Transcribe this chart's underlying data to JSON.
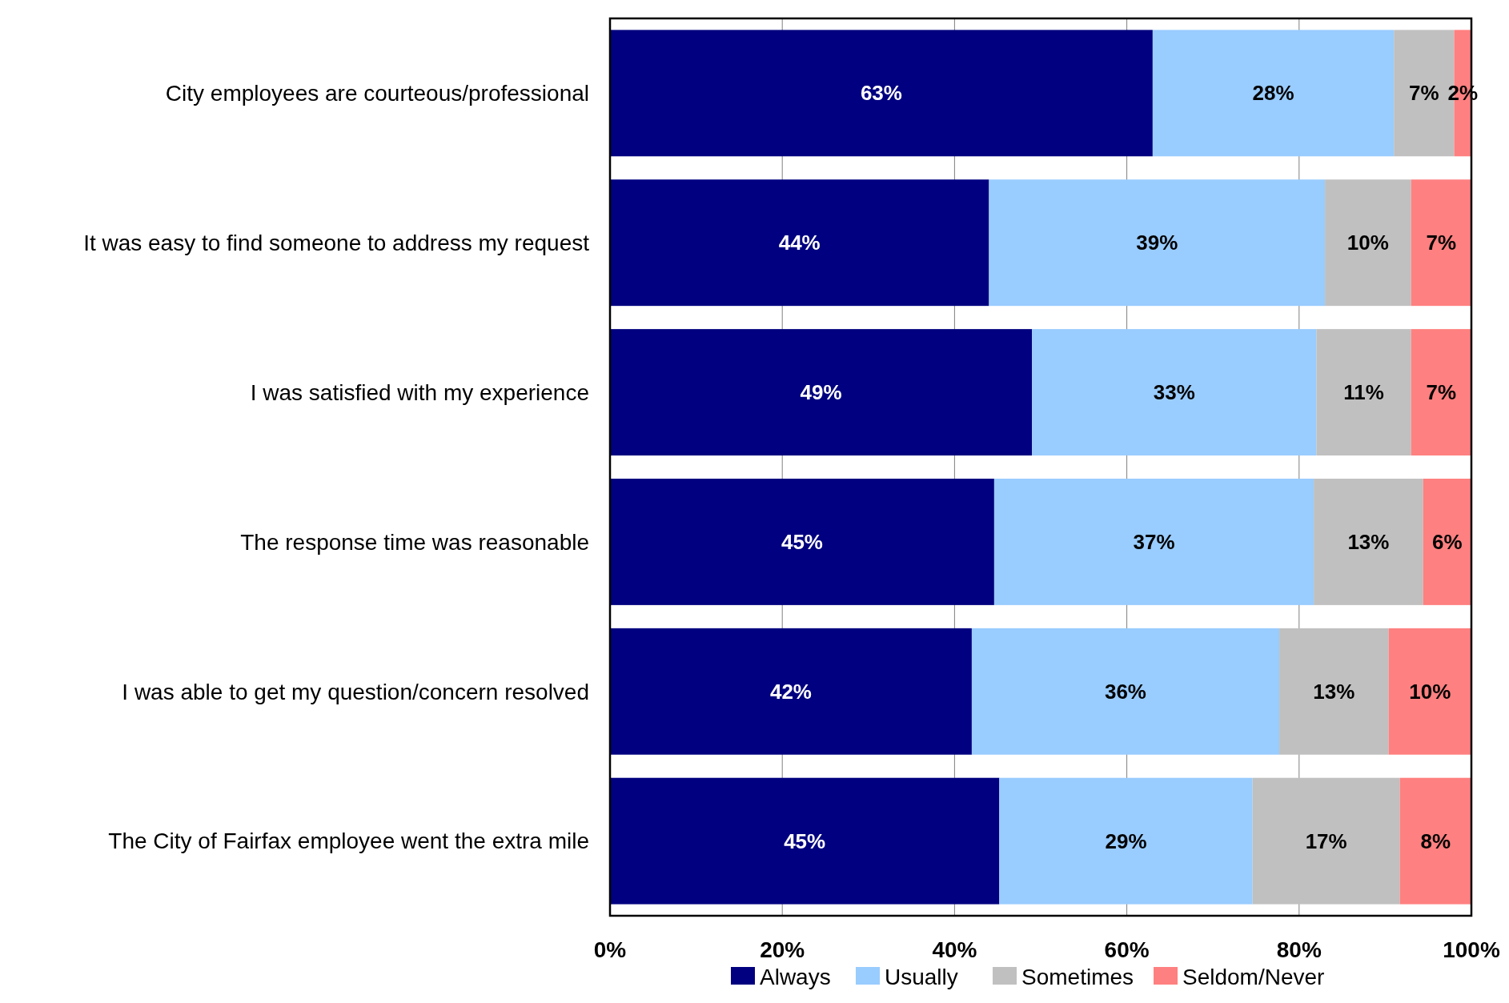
{
  "chart_data": {
    "type": "bar",
    "orientation": "horizontal",
    "stacked": true,
    "categories": [
      "City employees are courteous/professional",
      "It was easy to find someone to address my request",
      "I was satisfied with my experience",
      "The response time was reasonable",
      "I was able to get my question/concern resolved",
      "The City of Fairfax employee went the extra mile"
    ],
    "series": [
      {
        "name": "Always",
        "color": "#000080",
        "values": [
          63,
          44,
          49,
          44.6,
          42,
          45.2
        ],
        "value_labels": [
          "63%",
          "44%",
          "49%",
          "45%",
          "42%",
          "45%"
        ]
      },
      {
        "name": "Usually",
        "color": "#99ccff",
        "values": [
          28,
          39,
          33,
          37.1,
          35.7,
          29.4
        ],
        "value_labels": [
          "28%",
          "39%",
          "33%",
          "37%",
          "36%",
          "29%"
        ]
      },
      {
        "name": "Sometimes",
        "color": "#c0c0c0",
        "values": [
          7,
          10,
          11,
          12.7,
          12.7,
          17.1
        ],
        "value_labels": [
          "7%",
          "10%",
          "11%",
          "13%",
          "13%",
          "17%"
        ]
      },
      {
        "name": "Seldom/Never",
        "color": "#ff8080",
        "values": [
          2,
          7,
          7,
          5.6,
          9.6,
          8.3
        ],
        "value_labels": [
          "2%",
          "7%",
          "7%",
          "6%",
          "10%",
          "8%"
        ]
      }
    ],
    "xlim": [
      0,
      100
    ],
    "xticks": [
      {
        "value": 0,
        "label": "0%"
      },
      {
        "value": 20,
        "label": "20%"
      },
      {
        "value": 40,
        "label": "40%"
      },
      {
        "value": 60,
        "label": "60%"
      },
      {
        "value": 80,
        "label": "80%"
      },
      {
        "value": 100,
        "label": "100%"
      }
    ],
    "grid": "x",
    "legend": "bottom"
  }
}
